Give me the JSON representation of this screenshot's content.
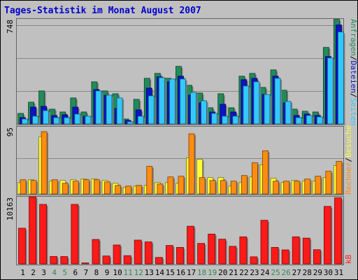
{
  "chart_data": {
    "type": "bar",
    "title": "Tages-Statistik im Monat August 2007",
    "categories": [
      "1",
      "2",
      "3",
      "4",
      "5",
      "6",
      "7",
      "8",
      "9",
      "10",
      "11",
      "12",
      "13",
      "14",
      "15",
      "16",
      "17",
      "18",
      "19",
      "20",
      "21",
      "22",
      "23",
      "24",
      "25",
      "26",
      "27",
      "28",
      "29",
      "30",
      "31"
    ],
    "weekend_days": [
      "4",
      "5",
      "11",
      "12",
      "18",
      "19",
      "25",
      "26"
    ],
    "colors": {
      "title": "#0000cc",
      "background": "#c0c0c0",
      "plot_background": "#c0c0c0",
      "frame": "#666666",
      "grid": "#888888",
      "weekday_label": "#000000",
      "weekend_label": "#2e8b57",
      "anfragen": "#228b5a",
      "dateien": "#0a14c8",
      "seiten": "#33c8ff",
      "besuche": "#ffff33",
      "rechner": "#ff8c10",
      "kb": "#ff1a1a"
    },
    "panels": [
      {
        "id": "top",
        "max_label": "748",
        "ylim": [
          0,
          748
        ],
        "legend": [
          "Anfragen",
          "/",
          "Dateien",
          "/",
          "Seiten"
        ],
        "series": [
          {
            "name": "Anfragen",
            "color_key": "anfragen",
            "values": [
              75,
              155,
              235,
              105,
              85,
              185,
              85,
              300,
              235,
              215,
              35,
              175,
              325,
              360,
              325,
              410,
              275,
              220,
              115,
              215,
              115,
              340,
              360,
              260,
              385,
              240,
              105,
              90,
              85,
              545,
              745
            ]
          },
          {
            "name": "Dateien",
            "color_key": "dateien",
            "values": [
              45,
              120,
              125,
              60,
              65,
              120,
              55,
              245,
              205,
              110,
              25,
              100,
              255,
              335,
              300,
              340,
              205,
              150,
              85,
              140,
              85,
              315,
              325,
              210,
              340,
              150,
              60,
              70,
              60,
              480,
              705
            ]
          },
          {
            "name": "Seiten",
            "color_key": "seiten",
            "values": [
              35,
              55,
              95,
              45,
              45,
              70,
              55,
              235,
              205,
              185,
              15,
              55,
              200,
              330,
              320,
              320,
              225,
              165,
              75,
              55,
              55,
              270,
              300,
              210,
              325,
              160,
              45,
              60,
              50,
              470,
              655
            ]
          }
        ]
      },
      {
        "id": "middle",
        "max_label": "95",
        "ylim": [
          0,
          95
        ],
        "legend": [
          "Rechner",
          "/",
          "Besuche"
        ],
        "series": [
          {
            "name": "Besuche",
            "color_key": "besuche",
            "values": [
              16,
              20,
              81,
              18,
              19,
              20,
              21,
              21,
              19,
              15,
              9,
              11,
              12,
              16,
              16,
              15,
              51,
              49,
              23,
              23,
              11,
              16,
              24,
              41,
              22,
              16,
              19,
              18,
              18,
              23,
              40
            ]
          },
          {
            "name": "Rechner",
            "color_key": "rechner",
            "values": [
              20,
              19,
              88,
              20,
              15,
              18,
              20,
              20,
              17,
              12,
              11,
              12,
              39,
              14,
              24,
              25,
              85,
              23,
              19,
              19,
              18,
              26,
              44,
              61,
              18,
              18,
              18,
              21,
              25,
              32,
              46
            ]
          }
        ]
      },
      {
        "id": "bottom",
        "max_label": "10163",
        "ylim": [
          0,
          10163
        ],
        "legend": [
          "kB"
        ],
        "series": [
          {
            "name": "kB",
            "color_key": "kb",
            "values": [
              5400,
              10150,
              9000,
              1130,
              1110,
              9000,
              150,
              3700,
              1200,
              2860,
              1250,
              3600,
              3330,
              980,
              2790,
              2500,
              5700,
              3100,
              4510,
              3740,
              2660,
              4100,
              1070,
              6600,
              2500,
              2120,
              4100,
              3900,
              2150,
              8700,
              10000
            ]
          }
        ]
      }
    ]
  }
}
